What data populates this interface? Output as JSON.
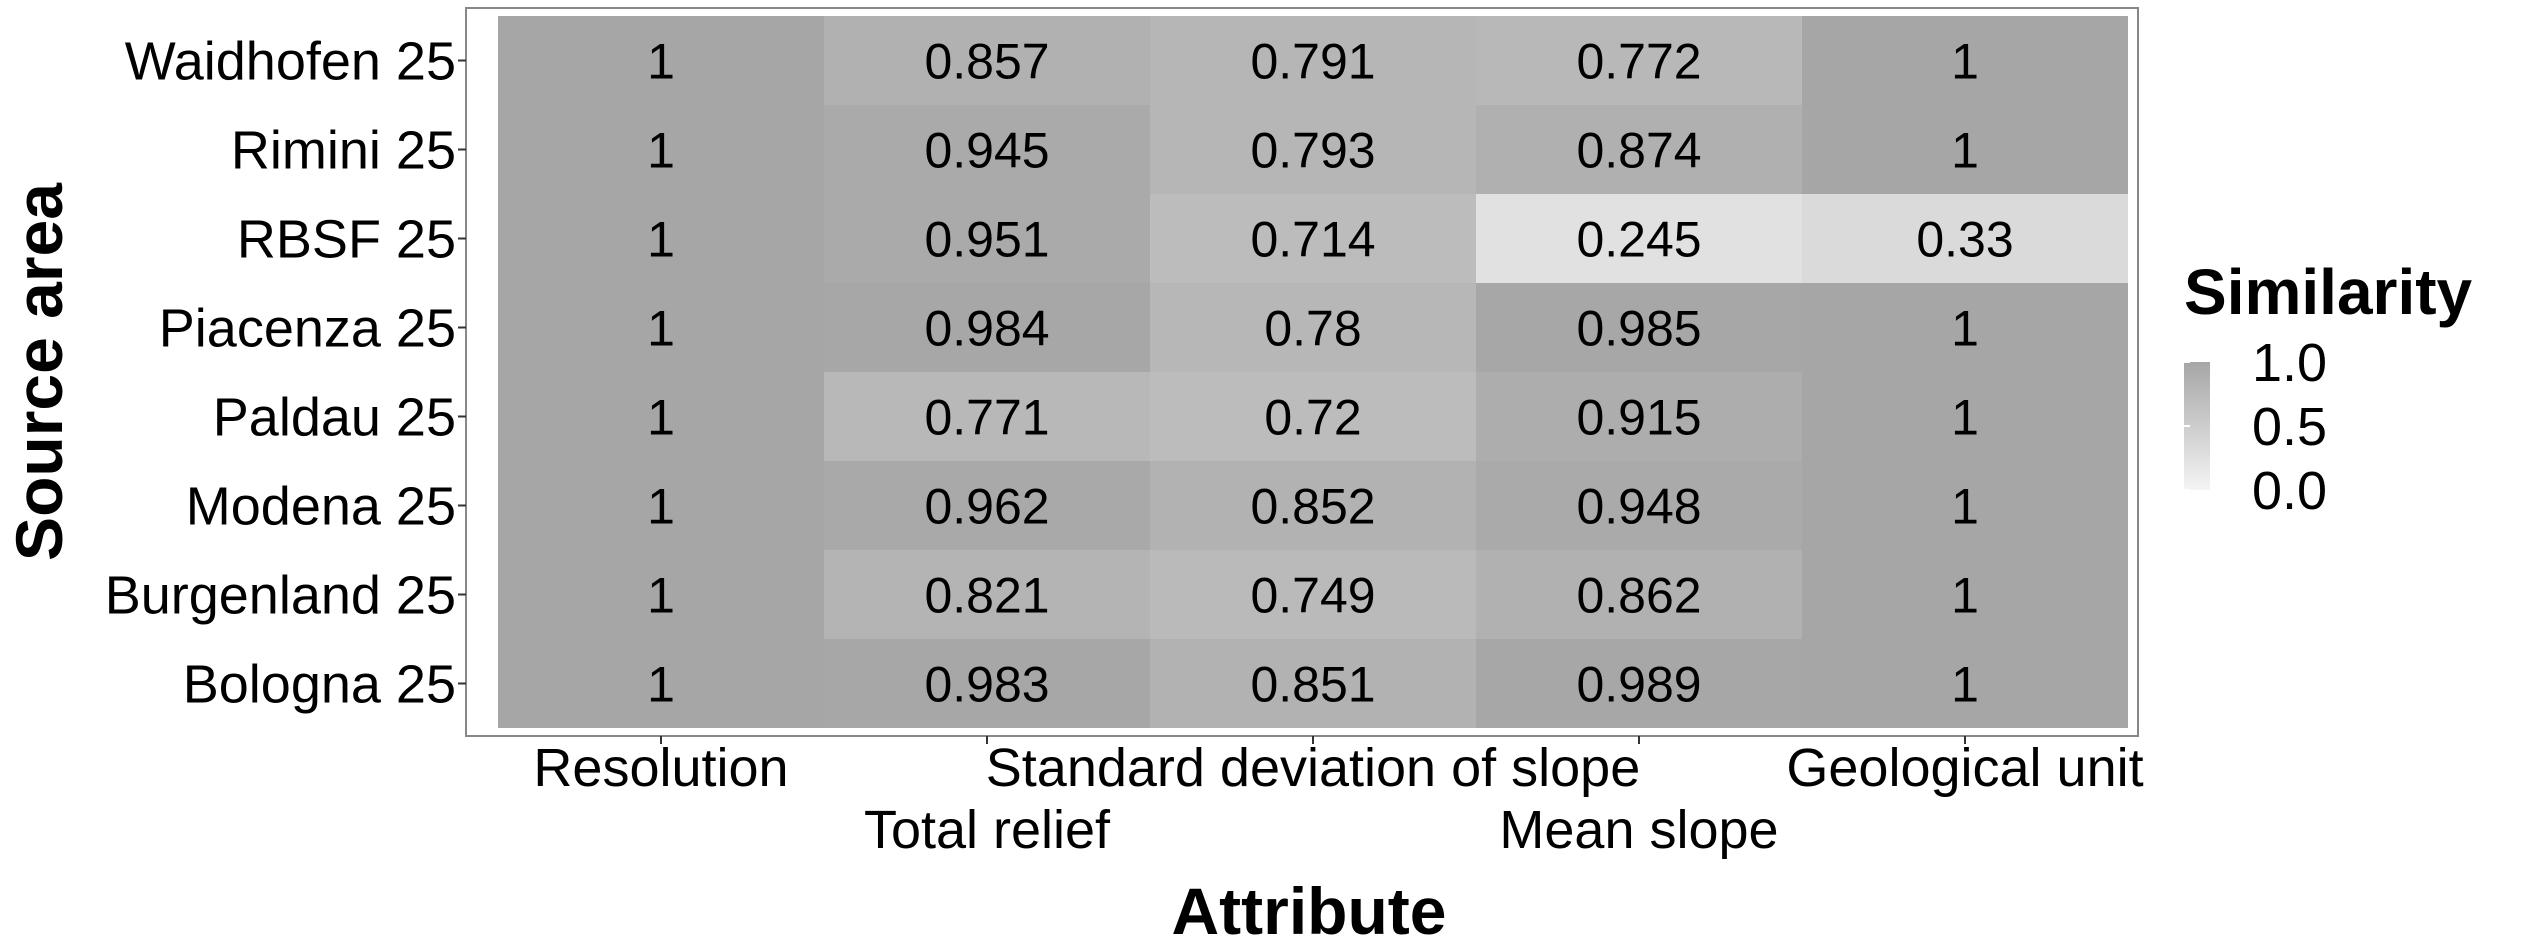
{
  "chart_data": {
    "type": "heatmap",
    "x_label": "Attribute",
    "y_label": "Source area",
    "x_categories": [
      "Resolution",
      "Total relief",
      "Standard deviation of slope",
      "Mean slope",
      "Geological unit"
    ],
    "y_categories": [
      "Waidhofen 25",
      "Rimini 25",
      "RBSF 25",
      "Piacenza 25",
      "Paldau 25",
      "Modena 25",
      "Burgenland 25",
      "Bologna 25"
    ],
    "values": [
      [
        1,
        0.857,
        0.791,
        0.772,
        1
      ],
      [
        1,
        0.945,
        0.793,
        0.874,
        1
      ],
      [
        1,
        0.951,
        0.714,
        0.245,
        0.33
      ],
      [
        1,
        0.984,
        0.78,
        0.985,
        1
      ],
      [
        1,
        0.771,
        0.72,
        0.915,
        1
      ],
      [
        1,
        0.962,
        0.852,
        0.948,
        1
      ],
      [
        1,
        0.821,
        0.749,
        0.862,
        1
      ],
      [
        1,
        0.983,
        0.851,
        0.989,
        1
      ]
    ],
    "cell_labels": [
      [
        "1",
        "0.857",
        "0.791",
        "0.772",
        "1"
      ],
      [
        "1",
        "0.945",
        "0.793",
        "0.874",
        "1"
      ],
      [
        "1",
        "0.951",
        "0.714",
        "0.245",
        "0.33"
      ],
      [
        "1",
        "0.984",
        "0.78",
        "0.985",
        "1"
      ],
      [
        "1",
        "0.771",
        "0.72",
        "0.915",
        "1"
      ],
      [
        "1",
        "0.962",
        "0.852",
        "0.948",
        "1"
      ],
      [
        "1",
        "0.821",
        "0.749",
        "0.862",
        "1"
      ],
      [
        "1",
        "0.983",
        "0.851",
        "0.989",
        "1"
      ]
    ],
    "legend": {
      "title": "Similarity",
      "ticks": [
        "1.0",
        "0.5",
        "0.0"
      ],
      "range": [
        0,
        1
      ],
      "placement": "right"
    },
    "color_scale": {
      "low": "#f4f4f4",
      "high": "#a6a6a6"
    },
    "grid": false
  }
}
